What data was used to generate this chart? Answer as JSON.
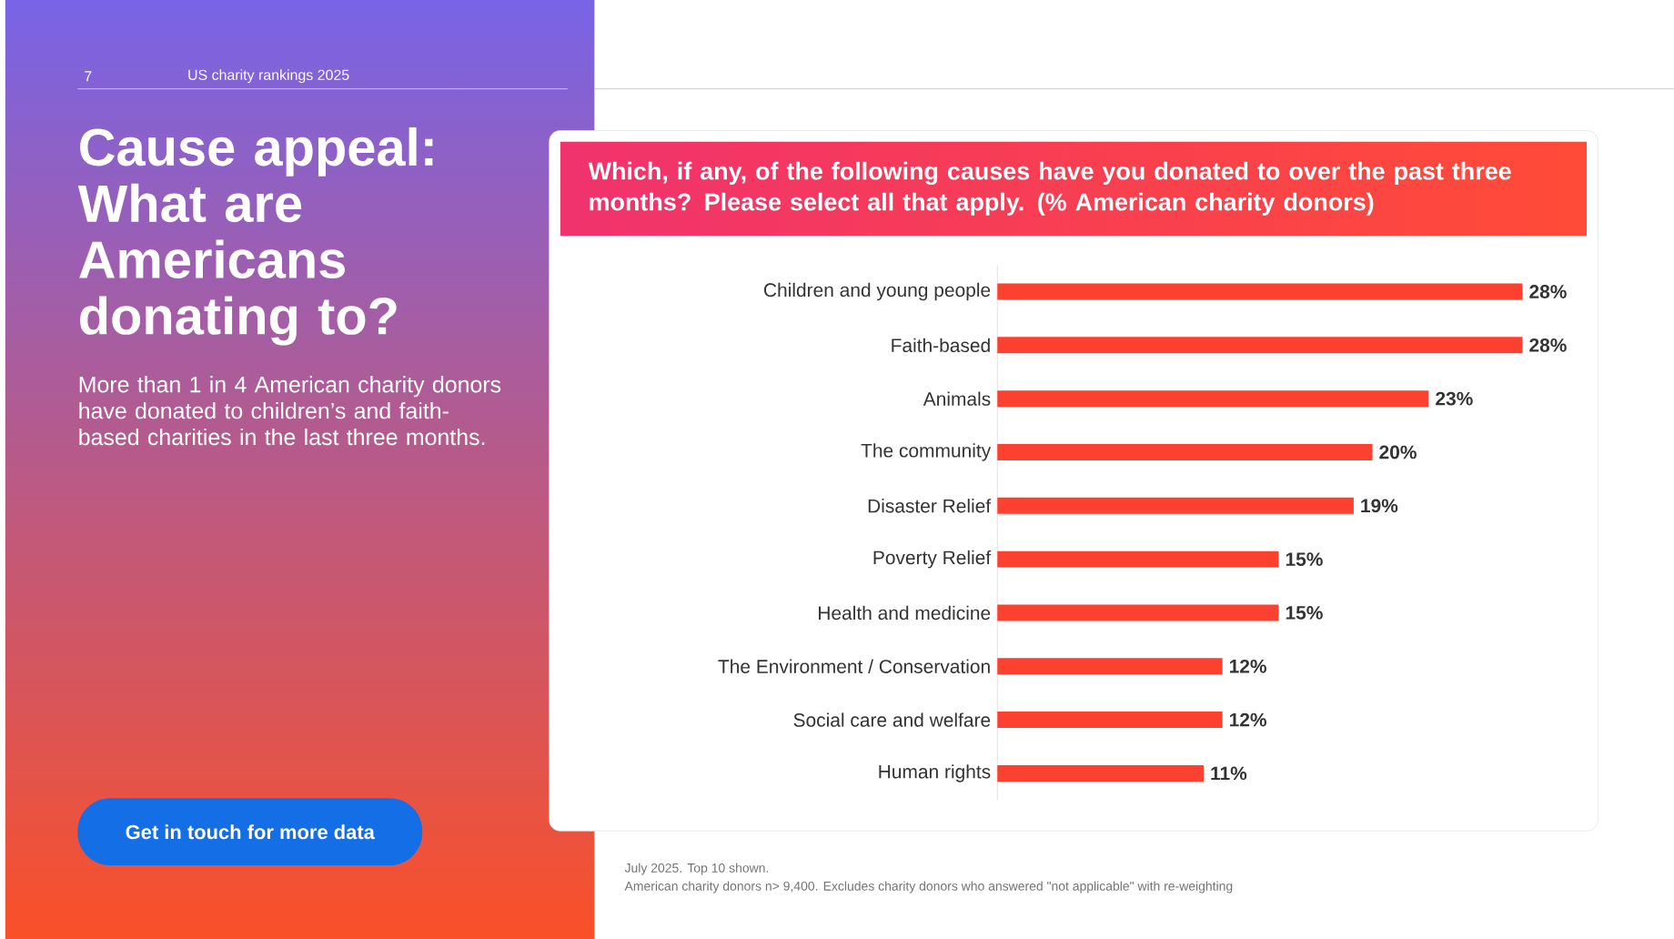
{
  "chart_data": {
    "type": "bar",
    "orientation": "horizontal",
    "title": "Which, if any, of the following causes have you donated to over the past three months? Please select all that apply. (% American charity donors)",
    "categories": [
      "Children and young people",
      "Faith-based",
      "Animals",
      "The community",
      "Disaster Relief",
      "Poverty Relief",
      "Health and medicine",
      "The Environment / Conservation",
      "Social care and welfare",
      "Human rights"
    ],
    "values": [
      28,
      28,
      23,
      20,
      19,
      15,
      15,
      12,
      12,
      11
    ],
    "value_labels": [
      "28%",
      "28%",
      "23%",
      "20%",
      "19%",
      "15%",
      "15%",
      "12%",
      "12%",
      "11%"
    ],
    "color": "#fc4130",
    "annotations": [
      "7",
      "US charity rankings 2025",
      "Cause appeal: What are Americans donating to?",
      "More than 1 in 4 American charity donors have donated to children’s and faith-based charities in the last three months.",
      "Get in touch for more data",
      "July 2025. Top 10 shown.",
      "American charity donors n> 9,400. Excludes charity donors who answered \"not applicable\" with re-weighting"
    ]
  }
}
